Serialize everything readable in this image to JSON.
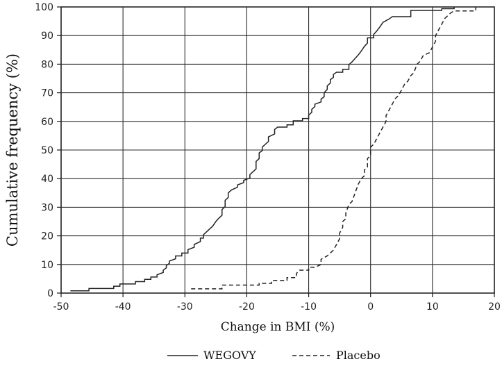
{
  "chart_data": {
    "type": "line",
    "title": "",
    "xlabel": "Change in BMI (%)",
    "ylabel": "Cumulative frequency (%)",
    "xlim": [
      -50,
      20
    ],
    "ylim": [
      0,
      100
    ],
    "xticks": [
      -50,
      -40,
      -30,
      -20,
      -10,
      0,
      10,
      20
    ],
    "yticks": [
      0,
      10,
      20,
      30,
      40,
      50,
      60,
      70,
      80,
      90,
      100
    ],
    "xtick_labels": [
      "-50",
      "-40",
      "-30",
      "-20",
      "-10",
      "0",
      "10",
      "20"
    ],
    "ytick_labels": [
      "0",
      "10",
      "20",
      "30",
      "40",
      "50",
      "60",
      "70",
      "80",
      "90",
      "100"
    ],
    "grid": true,
    "legend_position": "bottom-center",
    "series": [
      {
        "name": "WEGOVY",
        "line_style": "solid",
        "points": [
          [
            -48.5,
            0.8
          ],
          [
            -45.5,
            0.8
          ],
          [
            -45.5,
            1.6
          ],
          [
            -41.5,
            1.6
          ],
          [
            -41.5,
            2.4
          ],
          [
            -40.5,
            2.4
          ],
          [
            -40.5,
            3.2
          ],
          [
            -38,
            3.2
          ],
          [
            -38,
            4.0
          ],
          [
            -36.5,
            4.0
          ],
          [
            -36.5,
            4.8
          ],
          [
            -35.5,
            4.8
          ],
          [
            -35.5,
            5.6
          ],
          [
            -34.5,
            5.6
          ],
          [
            -34.5,
            6.4
          ],
          [
            -33.5,
            7.2
          ],
          [
            -33.5,
            8.0
          ],
          [
            -33,
            8.8
          ],
          [
            -33,
            9.6
          ],
          [
            -32.5,
            10.4
          ],
          [
            -32.5,
            11.2
          ],
          [
            -31.5,
            12.0
          ],
          [
            -31.5,
            13.0
          ],
          [
            -30.5,
            13.0
          ],
          [
            -30.5,
            14.0
          ],
          [
            -29.5,
            14.0
          ],
          [
            -29.5,
            15.2
          ],
          [
            -28.5,
            16.0
          ],
          [
            -28.5,
            17.0
          ],
          [
            -27.5,
            18.0
          ],
          [
            -27.5,
            19.2
          ],
          [
            -27,
            19.2
          ],
          [
            -27,
            20.4
          ],
          [
            -26.5,
            21.4
          ],
          [
            -26,
            22.4
          ],
          [
            -25.5,
            23.4
          ],
          [
            -25,
            25.0
          ],
          [
            -24.5,
            26.2
          ],
          [
            -24,
            27.2
          ],
          [
            -24,
            29.2
          ],
          [
            -23.5,
            30.2
          ],
          [
            -23.5,
            32.4
          ],
          [
            -23,
            33.4
          ],
          [
            -23,
            35.0
          ],
          [
            -22.5,
            36.0
          ],
          [
            -21.5,
            37.0
          ],
          [
            -21.5,
            37.8
          ],
          [
            -20.5,
            38.6
          ],
          [
            -20.5,
            39.4
          ],
          [
            -19.5,
            40.2
          ],
          [
            -19.5,
            41.4
          ],
          [
            -19,
            42.4
          ],
          [
            -18.5,
            43.4
          ],
          [
            -18.5,
            46.0
          ],
          [
            -18,
            47.0
          ],
          [
            -18,
            49.0
          ],
          [
            -17.5,
            49.8
          ],
          [
            -17.5,
            51.0
          ],
          [
            -17,
            52.0
          ],
          [
            -16.5,
            53.0
          ],
          [
            -16.5,
            54.6
          ],
          [
            -15.5,
            55.6
          ],
          [
            -15.5,
            57.2
          ],
          [
            -15,
            58.0
          ],
          [
            -13.5,
            58.0
          ],
          [
            -13.5,
            58.8
          ],
          [
            -12.5,
            58.8
          ],
          [
            -12.5,
            60.2
          ],
          [
            -11,
            60.2
          ],
          [
            -11,
            61.0
          ],
          [
            -10,
            61.0
          ],
          [
            -10,
            62.2
          ],
          [
            -9.5,
            63.2
          ],
          [
            -9.5,
            64.2
          ],
          [
            -9,
            65.2
          ],
          [
            -9,
            66.0
          ],
          [
            -8,
            66.8
          ],
          [
            -8,
            67.8
          ],
          [
            -7.5,
            68.6
          ],
          [
            -7.5,
            70.0
          ],
          [
            -7,
            71.2
          ],
          [
            -7,
            72.4
          ],
          [
            -6.5,
            73.4
          ],
          [
            -6.5,
            74.6
          ],
          [
            -6,
            75.4
          ],
          [
            -6,
            76.4
          ],
          [
            -5.5,
            77.2
          ],
          [
            -4.5,
            77.2
          ],
          [
            -4.5,
            78.2
          ],
          [
            -3.5,
            78.2
          ],
          [
            -3.5,
            79.8
          ],
          [
            -3,
            80.8
          ],
          [
            -2.5,
            82.0
          ],
          [
            -2,
            83.2
          ],
          [
            -1.5,
            84.6
          ],
          [
            -1,
            86.2
          ],
          [
            -0.5,
            87.4
          ],
          [
            -0.5,
            89.2
          ],
          [
            0.5,
            89.2
          ],
          [
            0.5,
            90.4
          ],
          [
            1,
            91.6
          ],
          [
            1.5,
            93.0
          ],
          [
            2,
            94.6
          ],
          [
            3,
            95.8
          ],
          [
            3.5,
            96.6
          ],
          [
            6.5,
            96.6
          ],
          [
            6.5,
            98.8
          ],
          [
            11.5,
            98.8
          ],
          [
            11.5,
            99.4
          ],
          [
            13.5,
            99.4
          ],
          [
            13.5,
            100
          ]
        ]
      },
      {
        "name": "Placebo",
        "line_style": "dashed",
        "points": [
          [
            -29,
            1.5
          ],
          [
            -24,
            1.5
          ],
          [
            -24,
            2.8
          ],
          [
            -18,
            2.8
          ],
          [
            -18,
            3.4
          ],
          [
            -16,
            3.4
          ],
          [
            -16,
            4.4
          ],
          [
            -13.5,
            4.4
          ],
          [
            -13.5,
            5.4
          ],
          [
            -12,
            5.4
          ],
          [
            -12,
            6.8
          ],
          [
            -11.5,
            8.0
          ],
          [
            -10,
            8.0
          ],
          [
            -10,
            9.0
          ],
          [
            -9,
            9.0
          ],
          [
            -8,
            10.0
          ],
          [
            -8,
            11.8
          ],
          [
            -7,
            13.0
          ],
          [
            -6,
            15.0
          ],
          [
            -5.5,
            17.0
          ],
          [
            -5,
            19.0
          ],
          [
            -5,
            21.0
          ],
          [
            -4.5,
            23.0
          ],
          [
            -4.5,
            25.0
          ],
          [
            -4,
            26.0
          ],
          [
            -4,
            28.0
          ],
          [
            -3.5,
            31.0
          ],
          [
            -3,
            32.0
          ],
          [
            -2.5,
            35.0
          ],
          [
            -2,
            38.0
          ],
          [
            -1.5,
            40.0
          ],
          [
            -1,
            41.0
          ],
          [
            -1,
            43.0
          ],
          [
            -0.5,
            44.0
          ],
          [
            -0.5,
            47.0
          ],
          [
            0,
            48.0
          ],
          [
            0,
            51.0
          ],
          [
            0.5,
            52.0
          ],
          [
            1,
            54.0
          ],
          [
            1.5,
            56.0
          ],
          [
            2,
            58.0
          ],
          [
            2.5,
            60.0
          ],
          [
            2.5,
            62.0
          ],
          [
            3,
            64.0
          ],
          [
            3.5,
            66.0
          ],
          [
            4,
            68.0
          ],
          [
            4.5,
            69.0
          ],
          [
            5,
            71.0
          ],
          [
            5.5,
            73.0
          ],
          [
            6,
            74.0
          ],
          [
            6.5,
            76.0
          ],
          [
            7,
            77.0
          ],
          [
            7.5,
            80.0
          ],
          [
            8,
            81.0
          ],
          [
            8.5,
            83.0
          ],
          [
            9.5,
            84.0
          ],
          [
            10,
            86.0
          ],
          [
            10.5,
            88.0
          ],
          [
            10.5,
            90.0
          ],
          [
            11,
            92.0
          ],
          [
            11.5,
            94.0
          ],
          [
            12,
            96.0
          ],
          [
            12.5,
            97.0
          ],
          [
            13,
            98.0
          ],
          [
            13.5,
            98.6
          ],
          [
            17,
            98.6
          ],
          [
            17,
            100
          ]
        ]
      }
    ]
  }
}
